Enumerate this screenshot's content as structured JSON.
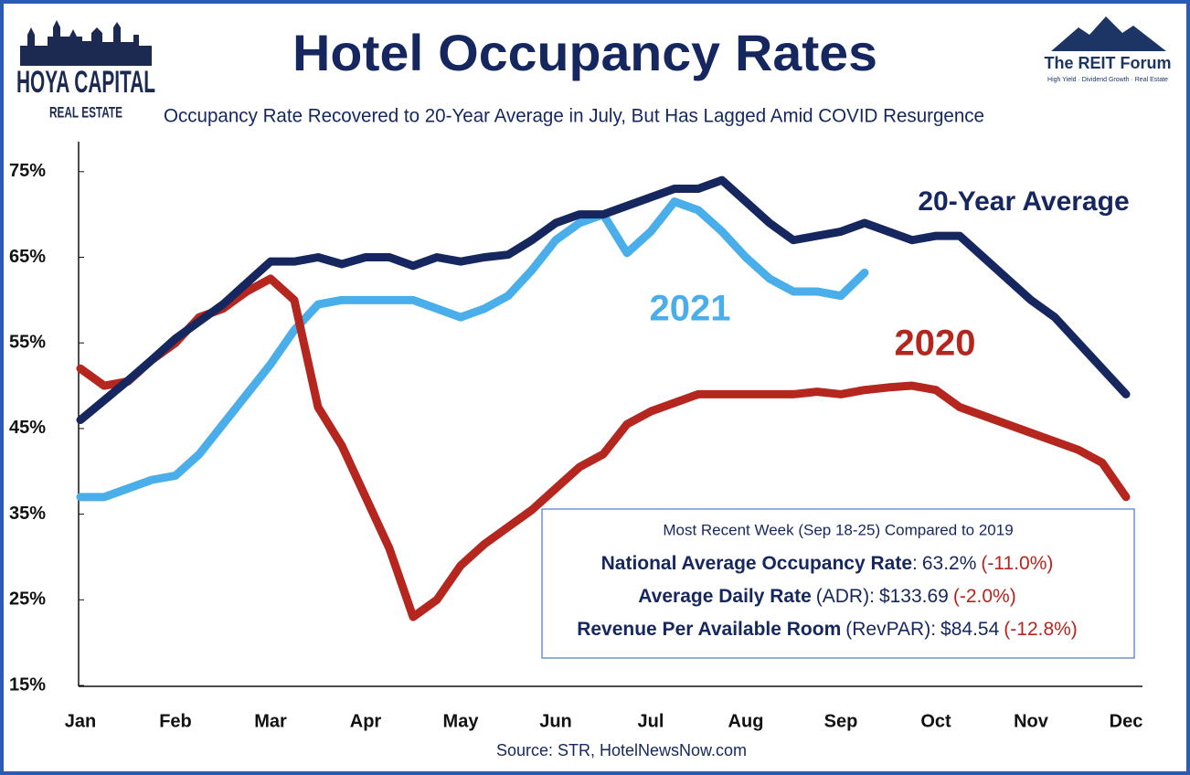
{
  "chart_data": {
    "type": "line",
    "title": "Hotel Occupancy Rates",
    "subtitle": "Occupancy Rate Recovered to 20-Year Average in July, But Has Lagged Amid COVID Resurgence",
    "source": "Source: STR, HotelNewsNow.com",
    "categories": [
      "Jan",
      null,
      null,
      null,
      "Feb",
      null,
      null,
      null,
      "Mar",
      null,
      null,
      null,
      "Apr",
      null,
      null,
      null,
      "May",
      null,
      null,
      null,
      "Jun",
      null,
      null,
      null,
      "Jul",
      null,
      null,
      null,
      "Aug",
      null,
      null,
      null,
      "Sep",
      null,
      null,
      null,
      "Oct",
      null,
      null,
      null,
      "Nov",
      null,
      null,
      null,
      "Dec"
    ],
    "ylim": [
      15,
      78.5
    ],
    "yticks": [
      {
        "value": 15,
        "label": "15%"
      },
      {
        "value": 25,
        "label": "25%"
      },
      {
        "value": 35,
        "label": "35%"
      },
      {
        "value": 45,
        "label": "45%"
      },
      {
        "value": 55,
        "label": "55%"
      },
      {
        "value": 65,
        "label": "65%"
      },
      {
        "value": 75,
        "label": "75%"
      }
    ],
    "grid": false,
    "series": [
      {
        "name": "20-Year Average",
        "color": "#15275e",
        "values": [
          46,
          48.3,
          50.6,
          53,
          55.5,
          57.5,
          59.5,
          62,
          64.5,
          64.5,
          65,
          64.2,
          65,
          65,
          64,
          65,
          64.5,
          65,
          65.3,
          67,
          69,
          70,
          70,
          71,
          72,
          73,
          73,
          74,
          71.5,
          69,
          67,
          67.5,
          68,
          69,
          68,
          67,
          67.5,
          67.5,
          65,
          62.5,
          60,
          58,
          55,
          52,
          49
        ]
      },
      {
        "name": "2020",
        "color": "#b5261e",
        "values": [
          52,
          50,
          50.5,
          53,
          55,
          58,
          59,
          61,
          62.5,
          60,
          47.5,
          43,
          37,
          31,
          23,
          25,
          29,
          31.5,
          33.5,
          35.5,
          38,
          40.5,
          42,
          45.5,
          47,
          48,
          49,
          49,
          49,
          49,
          49,
          49.3,
          49,
          49.5,
          49.8,
          50,
          49.5,
          47.5,
          46.5,
          45.5,
          44.5,
          43.5,
          42.5,
          41,
          37
        ]
      },
      {
        "name": "2021",
        "color": "#4aaeea",
        "values": [
          37,
          37,
          38,
          39,
          39.5,
          42,
          45.5,
          49,
          52.5,
          56.5,
          59.5,
          60,
          60,
          60,
          60,
          59,
          58,
          59,
          60.5,
          63.5,
          67,
          69,
          70,
          65.5,
          68,
          71.5,
          70.5,
          68,
          65,
          62.5,
          61,
          61,
          60.5,
          63.2,
          null,
          null,
          null,
          null,
          null,
          null,
          null,
          null,
          null,
          null,
          null
        ]
      }
    ]
  },
  "info_box": {
    "heading": "Most Recent Week (Sep 18-25) Compared to 2019",
    "rows": [
      {
        "label": "National Average Occupancy Rate",
        "note": ":",
        "value": "63.2%",
        "change": "(-11.0%)"
      },
      {
        "label": "Average Daily Rate",
        "note": "(ADR):",
        "value": "$133.69",
        "change": "(-2.0%)"
      },
      {
        "label": "Revenue Per Available Room",
        "note": "(RevPAR):",
        "value": "$84.54",
        "change": "(-12.8%)"
      }
    ]
  },
  "logos": {
    "left_main": "HOYA CAPITAL",
    "left_sub": "REAL ESTATE",
    "right_main": "The REIT Forum",
    "right_sub": "High Yield · Dividend Growth · Real Estate"
  }
}
